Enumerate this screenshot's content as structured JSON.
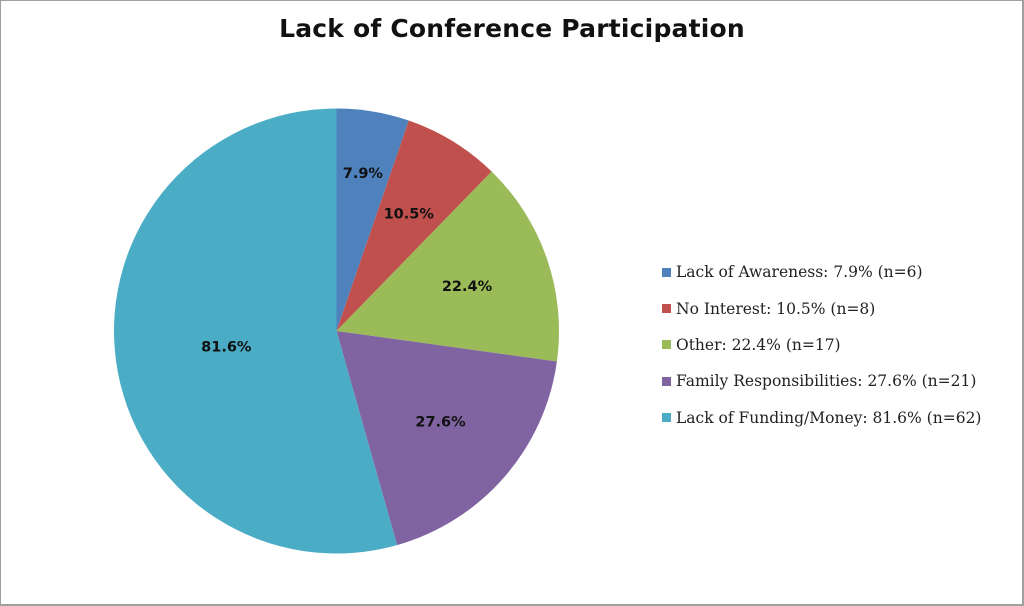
{
  "chart_data": {
    "type": "pie",
    "title": "Lack of Conference Participation",
    "categories": [
      "Lack of Awareness",
      "No Interest",
      "Other",
      "Family Responsibilities",
      "Lack of Funding/Money"
    ],
    "values": [
      7.9,
      10.5,
      22.4,
      27.6,
      81.6
    ],
    "counts": [
      6,
      8,
      17,
      21,
      62
    ],
    "data_labels": [
      "7.9%",
      "10.5%",
      "22.4%",
      "27.6%",
      "81.6%"
    ],
    "colors": [
      "#4f81bd",
      "#c0504d",
      "#9bbb59",
      "#8064a2",
      "#4bacc6"
    ],
    "legend": {
      "position": "right",
      "entries": [
        "Lack of Awareness: 7.9% (n=6)",
        "No Interest: 10.5% (n=8)",
        "Other: 22.4% (n=17)",
        "Family Responsibilities: 27.6% (n=21)",
        "Lack of Funding/Money: 81.6% (n=62)"
      ]
    },
    "start_angle_deg": 0,
    "direction": "clockwise"
  }
}
